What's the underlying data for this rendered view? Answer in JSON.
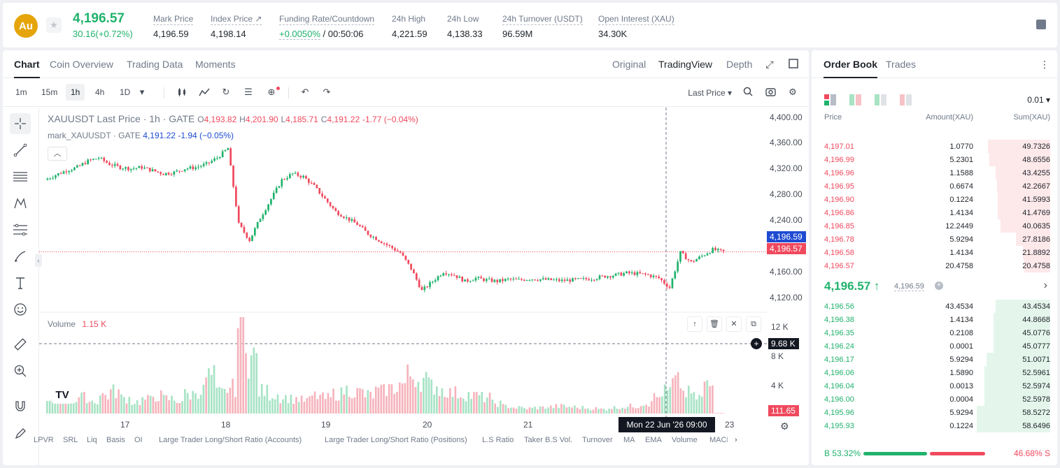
{
  "header": {
    "coin_logo": "Au",
    "last_price": "4,196.57",
    "change": "30.16(+0.72%)",
    "stats": [
      {
        "label": "Mark Price",
        "value": "4,196.59"
      },
      {
        "label": "Index Price ↗",
        "value": "4,198.14"
      },
      {
        "label": "Funding Rate/Countdown",
        "value_green": "+0.0050%",
        "value": " / 00:50:06"
      },
      {
        "label": "24h High",
        "value": "4,221.59"
      },
      {
        "label": "24h Low",
        "value": "4,138.33"
      },
      {
        "label": "24h Turnover (USDT)",
        "value": "96.59M"
      },
      {
        "label": "Open Interest (XAU)",
        "value": "34.30K"
      }
    ]
  },
  "chart_panel": {
    "tabs": [
      "Chart",
      "Coin Overview",
      "Trading Data",
      "Moments"
    ],
    "view_tabs": [
      "Original",
      "TradingView",
      "Depth"
    ],
    "timeframes": [
      "1m",
      "15m",
      "1h",
      "4h",
      "1D"
    ],
    "active_timeframe": "1h",
    "price_type": "Last Price ▾",
    "legend_main": {
      "symbol": "XAUUSDT Last Price · 1h · GATE",
      "o_label": "O",
      "o": "4,193.82",
      "h_label": "H",
      "h": "4,201.90",
      "l_label": "L",
      "l": "4,185.71",
      "c_label": "C",
      "c": "4,191.22",
      "chg": "-1.77 (−0.04%)"
    },
    "legend_mark": {
      "symbol": "mark_XAUUSDT · GATE",
      "value": "4,191.22",
      "chg": "-1.94 (−0.05%)"
    },
    "volume_legend": {
      "label": "Volume",
      "value": "1.15 K"
    },
    "price_axis": [
      "4,400.00",
      "4,360.00",
      "4,320.00",
      "4,280.00",
      "4,240.00",
      "4,200.00",
      "4,160.00",
      "4,120.00"
    ],
    "mark_tag": "4,196.59",
    "last_tag": "4,196.57",
    "volume_axis": [
      "12 K",
      "8 K",
      "4 K"
    ],
    "crosshair_vol": "9.68 K",
    "last_vol_tag": "111.65",
    "x_axis": [
      "17",
      "18",
      "19",
      "20",
      "21",
      "23"
    ],
    "time_tag": "Mon 22 Jun '26   09:00",
    "indicators": [
      "LPVR",
      "SRL",
      "Liq",
      "Basis",
      "OI",
      "Large Trader Long/Short Ratio (Accounts)",
      "Large Trader Long/Short Ratio (Positions)",
      "L.S Ratio",
      "Taker B.S Vol.",
      "Turnover",
      "MA",
      "EMA",
      "Volume",
      "MACD"
    ],
    "watermark": "TV"
  },
  "chart_data": {
    "type": "candlestick",
    "series": [
      {
        "name": "XAUUSDT Last Price",
        "close_path": [
          4310,
          4318,
          4325,
          4330,
          4340,
          4345,
          4335,
          4330,
          4328,
          4330,
          4325,
          4320,
          4322,
          4328,
          4330,
          4335,
          4345,
          4360,
          4240,
          4215,
          4250,
          4280,
          4310,
          4320,
          4315,
          4300,
          4280,
          4260,
          4250,
          4240,
          4225,
          4215,
          4205,
          4195,
          4170,
          4135,
          4150,
          4165,
          4160,
          4150,
          4155,
          4152,
          4150,
          4153,
          4152,
          4154,
          4153,
          4152,
          4151,
          4152,
          4153,
          4155,
          4158,
          4160,
          4163,
          4162,
          4160,
          4155,
          4140,
          4195,
          4180,
          4190,
          4200,
          4196.57
        ]
      },
      {
        "name": "Volume",
        "values": [
          1.5,
          2,
          1.8,
          2.2,
          1.7,
          2.5,
          3,
          2.1,
          1.6,
          1.9,
          2.4,
          2.0,
          1.8,
          2.6,
          3.1,
          5.0,
          2.8,
          3.5,
          12.0,
          7.5,
          3.0,
          2.6,
          2.2,
          2.0,
          1.8,
          2.4,
          2.1,
          2.7,
          3.2,
          2.9,
          2.5,
          3.0,
          3.4,
          4.0,
          5.2,
          4.6,
          3.8,
          3.2,
          2.8,
          2.6,
          2.4,
          2.2,
          1.4,
          1.0,
          0.8,
          0.7,
          0.8,
          0.9,
          1.0,
          0.9,
          0.8,
          0.7,
          0.6,
          0.8,
          0.9,
          1.0,
          1.4,
          2.2,
          3.0,
          4.2,
          2.8,
          2.2,
          3.8,
          0.11
        ]
      }
    ],
    "ylim": [
      4100,
      4420
    ],
    "x_ticks": [
      "17",
      "18",
      "19",
      "20",
      "21",
      "22",
      "23"
    ]
  },
  "order_book": {
    "tabs": [
      "Order Book",
      "Trades"
    ],
    "precision": "0.01 ▾",
    "headers": [
      "Price",
      "Amount(XAU)",
      "Sum(XAU)"
    ],
    "asks": [
      [
        "4,197.01",
        "1.0770",
        "49.7326",
        0.85
      ],
      [
        "4,196.99",
        "5.2301",
        "48.6556",
        0.83
      ],
      [
        "4,196.96",
        "1.1588",
        "43.4255",
        0.74
      ],
      [
        "4,196.95",
        "0.6674",
        "42.2667",
        0.72
      ],
      [
        "4,196.90",
        "0.1224",
        "41.5993",
        0.71
      ],
      [
        "4,196.86",
        "1.4134",
        "41.4769",
        0.71
      ],
      [
        "4,196.85",
        "12.2449",
        "40.0635",
        0.68
      ],
      [
        "4,196.78",
        "5.9294",
        "27.8186",
        0.47
      ],
      [
        "4,196.58",
        "1.4134",
        "21.8892",
        0.37
      ],
      [
        "4,196.57",
        "20.4758",
        "20.4758",
        0.35
      ]
    ],
    "mid_price": "4,196.57 ↑",
    "mid_mark": "4,196.59",
    "bids": [
      [
        "4,196.56",
        "43.4534",
        "43.4534",
        0.74
      ],
      [
        "4,196.38",
        "1.4134",
        "44.8668",
        0.77
      ],
      [
        "4,196.35",
        "0.2108",
        "45.0776",
        0.77
      ],
      [
        "4,196.24",
        "0.0001",
        "45.0777",
        0.77
      ],
      [
        "4,196.17",
        "5.9294",
        "51.0071",
        0.87
      ],
      [
        "4,196.06",
        "1.5890",
        "52.5961",
        0.9
      ],
      [
        "4,196.04",
        "0.0013",
        "52.5974",
        0.9
      ],
      [
        "4,196.00",
        "0.0004",
        "52.5978",
        0.9
      ],
      [
        "4,195.96",
        "5.9294",
        "58.5272",
        1.0
      ],
      [
        "4,195.93",
        "0.1224",
        "58.6496",
        1.0
      ]
    ],
    "buy_ratio": "B 53.32%",
    "sell_ratio": "46.68% S",
    "buy_frac": 0.5332
  },
  "colors": {
    "up": "#20b26c",
    "down": "#f0495d",
    "mark": "#1e4bd2"
  }
}
